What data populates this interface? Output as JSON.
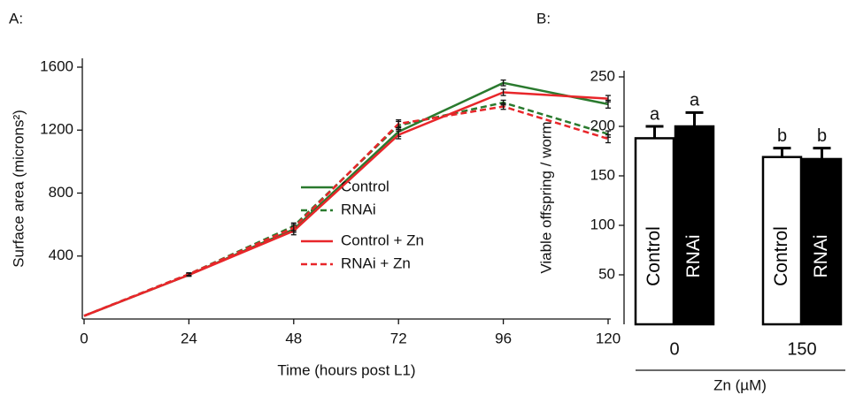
{
  "chart_data": [
    {
      "type": "line",
      "panel_label": "A:",
      "x_label": "Time (hours post L1)",
      "y_label": "Surface area (microns²)",
      "x": [
        0,
        24,
        48,
        72,
        96,
        120
      ],
      "xlim": [
        0,
        120
      ],
      "xticks": [
        0,
        24,
        48,
        72,
        96,
        120
      ],
      "ylim": [
        0,
        1600
      ],
      "yticks": [
        400,
        800,
        1200,
        1600
      ],
      "legend": "center right",
      "series": [
        {
          "name": "Control",
          "color": "#2a7a2e",
          "style": "solid",
          "values": [
            20,
            280,
            570,
            1190,
            1500,
            1365
          ],
          "errors": [
            0,
            8,
            20,
            30,
            18,
            25
          ]
        },
        {
          "name": "RNAi",
          "color": "#2a7a2e",
          "style": "dashed",
          "values": [
            20,
            285,
            590,
            1230,
            1375,
            1175
          ],
          "errors": [
            0,
            8,
            20,
            25,
            15,
            20
          ]
        },
        {
          "name": "Control + Zn",
          "color": "#e8262a",
          "style": "solid",
          "values": [
            20,
            280,
            560,
            1170,
            1440,
            1400
          ],
          "errors": [
            0,
            8,
            25,
            25,
            20,
            20
          ]
        },
        {
          "name": "RNAi + Zn",
          "color": "#e8262a",
          "style": "dashed",
          "values": [
            20,
            285,
            580,
            1240,
            1350,
            1145
          ],
          "errors": [
            0,
            8,
            20,
            25,
            18,
            25
          ]
        }
      ]
    },
    {
      "type": "bar",
      "panel_label": "B:",
      "x_label": "Zn (µM)",
      "y_label": "Viable offspring / worm",
      "categories": [
        "0",
        "150"
      ],
      "ylim": [
        0,
        250
      ],
      "yticks": [
        50,
        100,
        150,
        200,
        250
      ],
      "series": [
        {
          "name": "Control",
          "color": "#ffffff",
          "values": [
            188,
            169
          ],
          "errors": [
            12,
            9
          ],
          "letters": [
            "a",
            "b"
          ]
        },
        {
          "name": "RNAi",
          "color": "#000000",
          "values": [
            200,
            167
          ],
          "errors": [
            14,
            11
          ],
          "letters": [
            "a",
            "b"
          ]
        }
      ]
    }
  ]
}
